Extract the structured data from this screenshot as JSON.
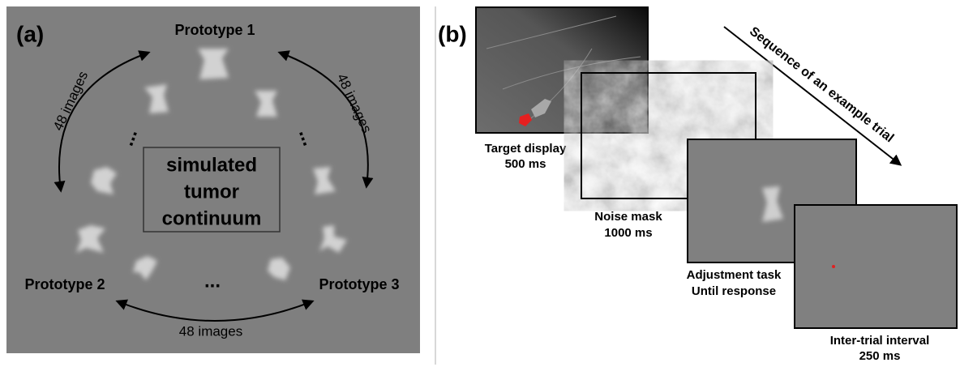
{
  "panel_a": {
    "label": "(a)",
    "prototypes": [
      "Prototype 1",
      "Prototype 2",
      "Prototype 3"
    ],
    "arc_labels": [
      "48 images",
      "48 images",
      "48 images"
    ],
    "ellipses": [
      "...",
      "...",
      "..."
    ],
    "center_label": [
      "simulated",
      "tumor",
      "continuum"
    ]
  },
  "panel_b": {
    "label": "(b)",
    "sequence_label": "Sequence of an example trial",
    "frames": [
      {
        "name": "Target display",
        "duration": "500 ms"
      },
      {
        "name": "Noise mask",
        "duration": "1000 ms"
      },
      {
        "name": "Adjustment task",
        "duration": "Until response"
      },
      {
        "name": "Inter-trial interval",
        "duration": "250 ms"
      }
    ]
  }
}
